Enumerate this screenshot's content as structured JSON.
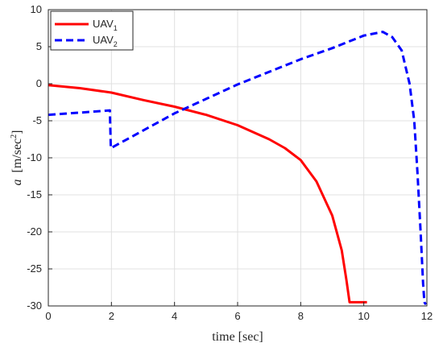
{
  "chart_data": {
    "type": "line",
    "xlabel": "time [sec]",
    "ylabel_symbol": "a",
    "ylabel_unit_prefix": "[m/sec",
    "ylabel_unit_exp": "2",
    "ylabel_unit_suffix": "]",
    "xlim": [
      0,
      12
    ],
    "ylim": [
      -30,
      10
    ],
    "xticks": [
      0,
      2,
      4,
      6,
      8,
      10,
      12
    ],
    "yticks": [
      10,
      5,
      0,
      -5,
      -10,
      -15,
      -20,
      -25,
      -30
    ],
    "grid": true,
    "legend_position": "top-left",
    "series": [
      {
        "name": "UAV",
        "subscript": "1",
        "color": "#ff0000",
        "style": "solid",
        "points": [
          [
            0,
            -0.2
          ],
          [
            1,
            -0.6
          ],
          [
            2,
            -1.2
          ],
          [
            3,
            -2.2
          ],
          [
            4,
            -3.1
          ],
          [
            5,
            -4.2
          ],
          [
            6,
            -5.6
          ],
          [
            7,
            -7.5
          ],
          [
            7.5,
            -8.7
          ],
          [
            8,
            -10.3
          ],
          [
            8.5,
            -13.2
          ],
          [
            9,
            -17.8
          ],
          [
            9.3,
            -22.5
          ],
          [
            9.45,
            -26.5
          ],
          [
            9.55,
            -29.5
          ],
          [
            10.1,
            -29.5
          ]
        ]
      },
      {
        "name": "UAV",
        "subscript": "2",
        "color": "#0000ff",
        "style": "dashed",
        "points": [
          [
            0,
            -4.2
          ],
          [
            1,
            -3.9
          ],
          [
            1.95,
            -3.6
          ],
          [
            1.98,
            -8.7
          ],
          [
            4,
            -4.0
          ],
          [
            6,
            -0.1
          ],
          [
            8,
            3.3
          ],
          [
            9,
            4.8
          ],
          [
            10,
            6.5
          ],
          [
            10.6,
            7.0
          ],
          [
            10.9,
            6.3
          ],
          [
            11.2,
            4.5
          ],
          [
            11.45,
            0.0
          ],
          [
            11.6,
            -5.0
          ],
          [
            11.7,
            -12.0
          ],
          [
            11.8,
            -20.0
          ],
          [
            11.88,
            -27.0
          ],
          [
            11.92,
            -29.5
          ],
          [
            11.97,
            -29.8
          ]
        ]
      }
    ]
  }
}
